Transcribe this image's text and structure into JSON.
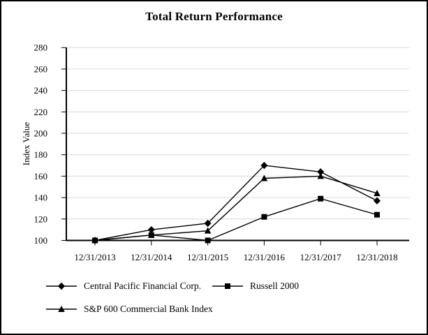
{
  "chart_data": {
    "type": "line",
    "title": "Total Return Performance",
    "xlabel": "",
    "ylabel": "Index Value",
    "ylim": [
      100,
      280
    ],
    "ytick_step": 20,
    "yticks": [
      100,
      120,
      140,
      160,
      180,
      200,
      220,
      240,
      260,
      280
    ],
    "categories": [
      "12/31/2013",
      "12/31/2014",
      "12/31/2015",
      "12/31/2016",
      "12/31/2017",
      "12/31/2018"
    ],
    "series": [
      {
        "name": "Central Pacific Financial Corp.",
        "marker": "diamond",
        "values": [
          100,
          110,
          116,
          170,
          164,
          137
        ]
      },
      {
        "name": "Russell 2000",
        "marker": "square",
        "values": [
          100,
          105,
          100,
          122,
          139,
          124
        ]
      },
      {
        "name": "S&P 600 Commercial Bank Index",
        "marker": "triangle",
        "values": [
          100,
          105,
          109,
          158,
          160,
          144
        ]
      }
    ],
    "grid": "horizontal",
    "legend_position": "bottom-left-two-rows",
    "colors": {
      "line": "#000000",
      "marker": "#000000",
      "grid": "#d9d9d9",
      "axis": "#000000",
      "text": "#000000",
      "background": "#ffffff"
    }
  }
}
